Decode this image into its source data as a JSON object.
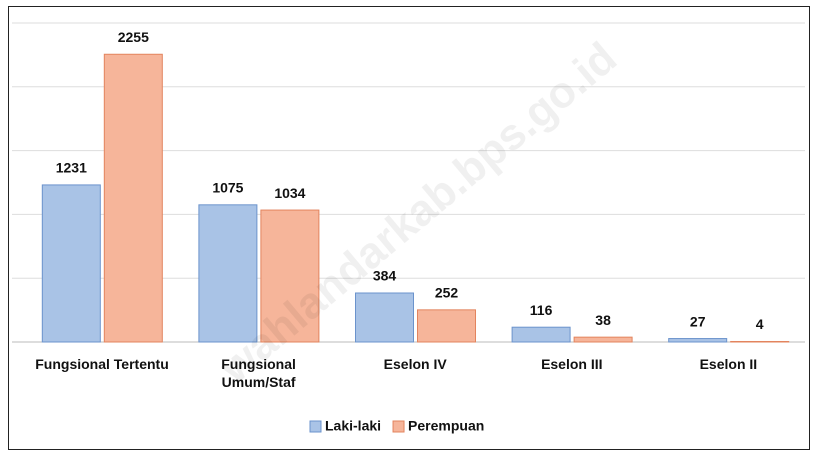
{
  "chart_data": {
    "type": "bar",
    "categories": [
      "Fungsional Tertentu",
      "Fungsional\nUmum/Staf",
      "Eselon IV",
      "Eselon III",
      "Eselon II"
    ],
    "series": [
      {
        "name": "Laki-laki",
        "color": "#a9c3e6",
        "values": [
          1231,
          1075,
          384,
          116,
          27
        ]
      },
      {
        "name": "Perempuan",
        "color": "#f6b59a",
        "values": [
          2255,
          1034,
          252,
          38,
          4
        ]
      }
    ],
    "ylim": [
      0,
      2500
    ],
    "yticks": [
      0,
      500,
      1000,
      1500,
      2000,
      2500
    ],
    "grid": true,
    "legend": "bottom",
    "watermark": "wahlandarkab.bps.go.id"
  }
}
